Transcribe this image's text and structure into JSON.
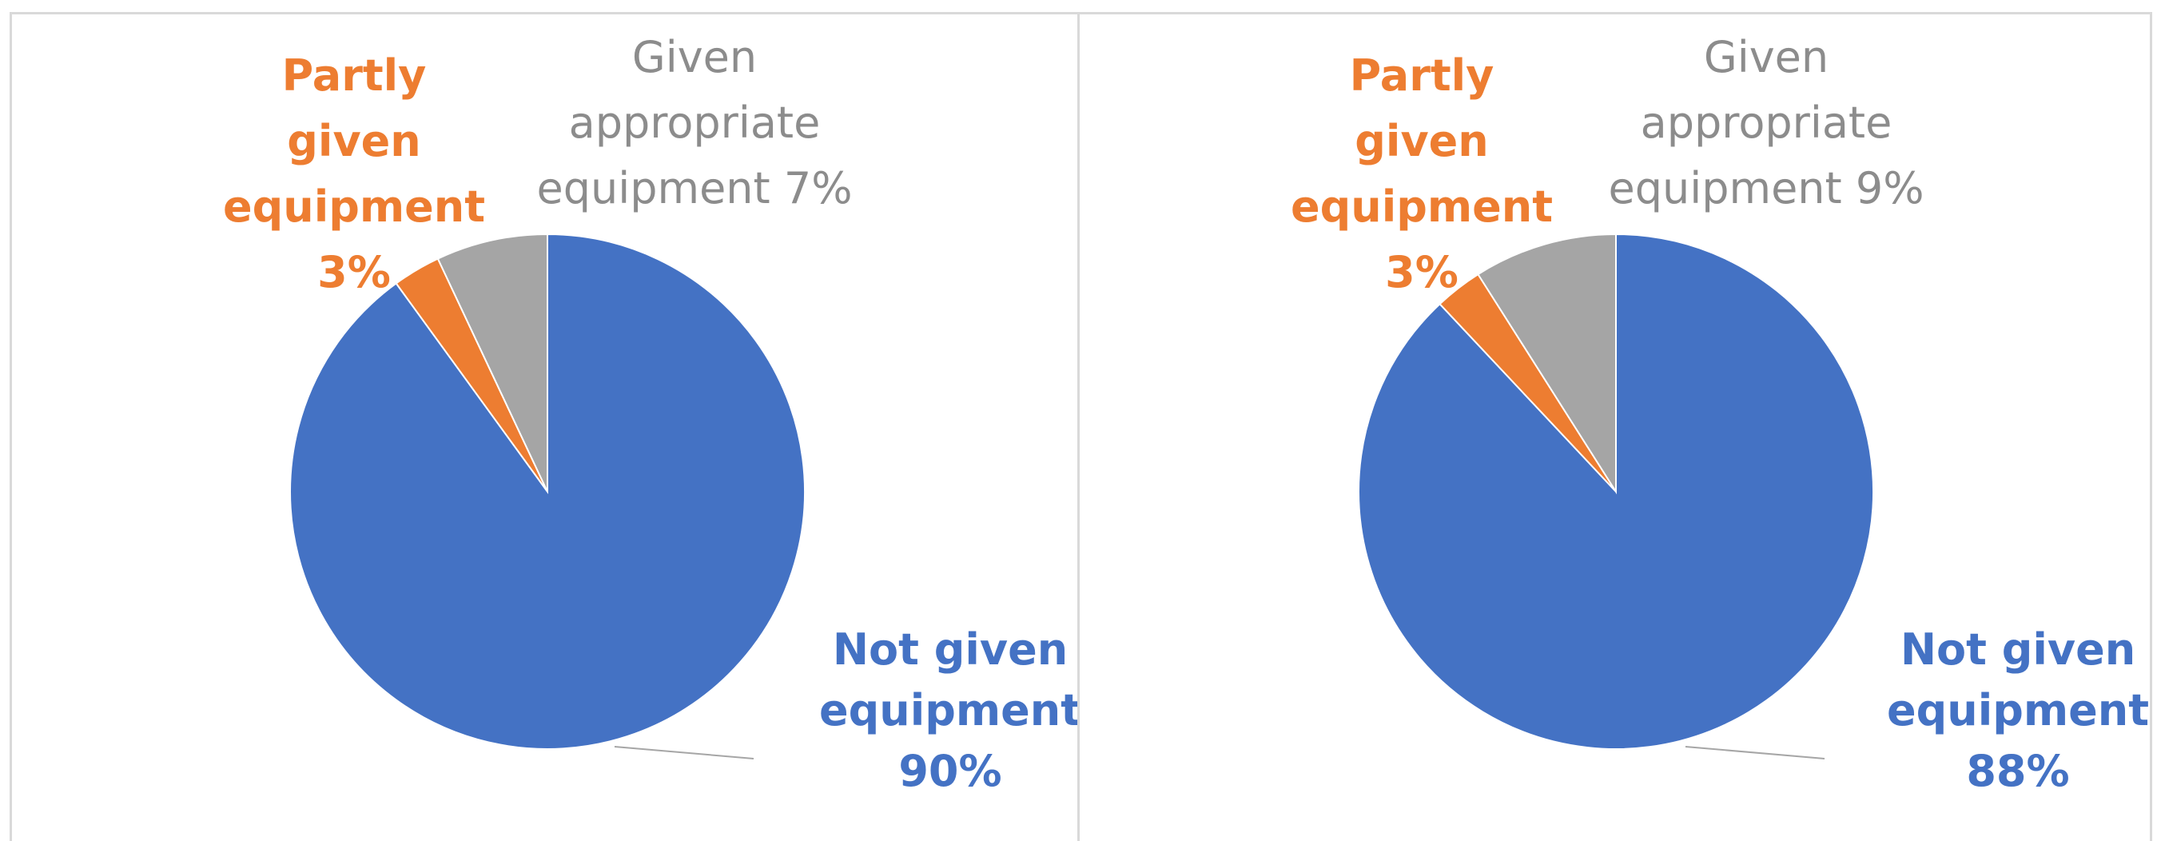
{
  "chart_data": [
    {
      "type": "pie",
      "title": "",
      "start_angle_deg": 0,
      "direction": "clockwise",
      "slices": [
        {
          "category": "Not given equipment",
          "value": 90,
          "label_lines": [
            "Not given",
            "equipment",
            "90%"
          ],
          "color": "#4472c4"
        },
        {
          "category": "Partly given equipment",
          "value": 3,
          "label_lines": [
            "Partly",
            "given",
            "equipment",
            "3%"
          ],
          "color": "#ed7d31"
        },
        {
          "category": "Given appropriate equipment",
          "value": 7,
          "label_lines": [
            "Given",
            "appropriate",
            "equipment 7%"
          ],
          "color": "#a5a5a5"
        }
      ],
      "legend": "none"
    },
    {
      "type": "pie",
      "title": "",
      "start_angle_deg": 0,
      "direction": "clockwise",
      "slices": [
        {
          "category": "Not given equipment",
          "value": 88,
          "label_lines": [
            "Not given",
            "equipment",
            "88%"
          ],
          "color": "#4472c4"
        },
        {
          "category": "Partly given equipment",
          "value": 3,
          "label_lines": [
            "Partly",
            "given",
            "equipment",
            "3%"
          ],
          "color": "#ed7d31"
        },
        {
          "category": "Given appropriate equipment",
          "value": 9,
          "label_lines": [
            "Given",
            "appropriate",
            "equipment 9%"
          ],
          "color": "#a5a5a5"
        }
      ],
      "legend": "none"
    }
  ]
}
